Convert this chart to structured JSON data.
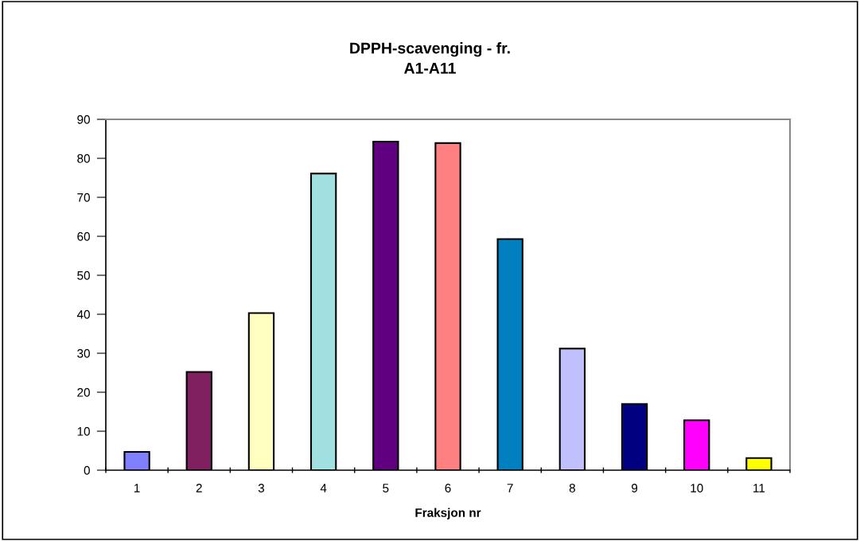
{
  "chart_data": {
    "type": "bar",
    "title": "DPPH-scavenging - fr.\nA1-A11",
    "xlabel": "Fraksjon nr",
    "categories": [
      "1",
      "2",
      "3",
      "4",
      "5",
      "6",
      "7",
      "8",
      "9",
      "10",
      "11"
    ],
    "values": [
      4.7,
      25.2,
      40.3,
      76.1,
      84.3,
      83.9,
      59.3,
      31.2,
      17.0,
      12.8,
      3.1
    ],
    "colors": [
      "#8080ff",
      "#802060",
      "#ffffc0",
      "#a0e0e0",
      "#600080",
      "#ff8080",
      "#0080c0",
      "#c0c0ff",
      "#000080",
      "#ff00ff",
      "#ffff00"
    ],
    "ylim": [
      0,
      90
    ],
    "yticks": [
      0,
      10,
      20,
      30,
      40,
      50,
      60,
      70,
      80,
      90
    ],
    "grid": false,
    "legend": false
  }
}
